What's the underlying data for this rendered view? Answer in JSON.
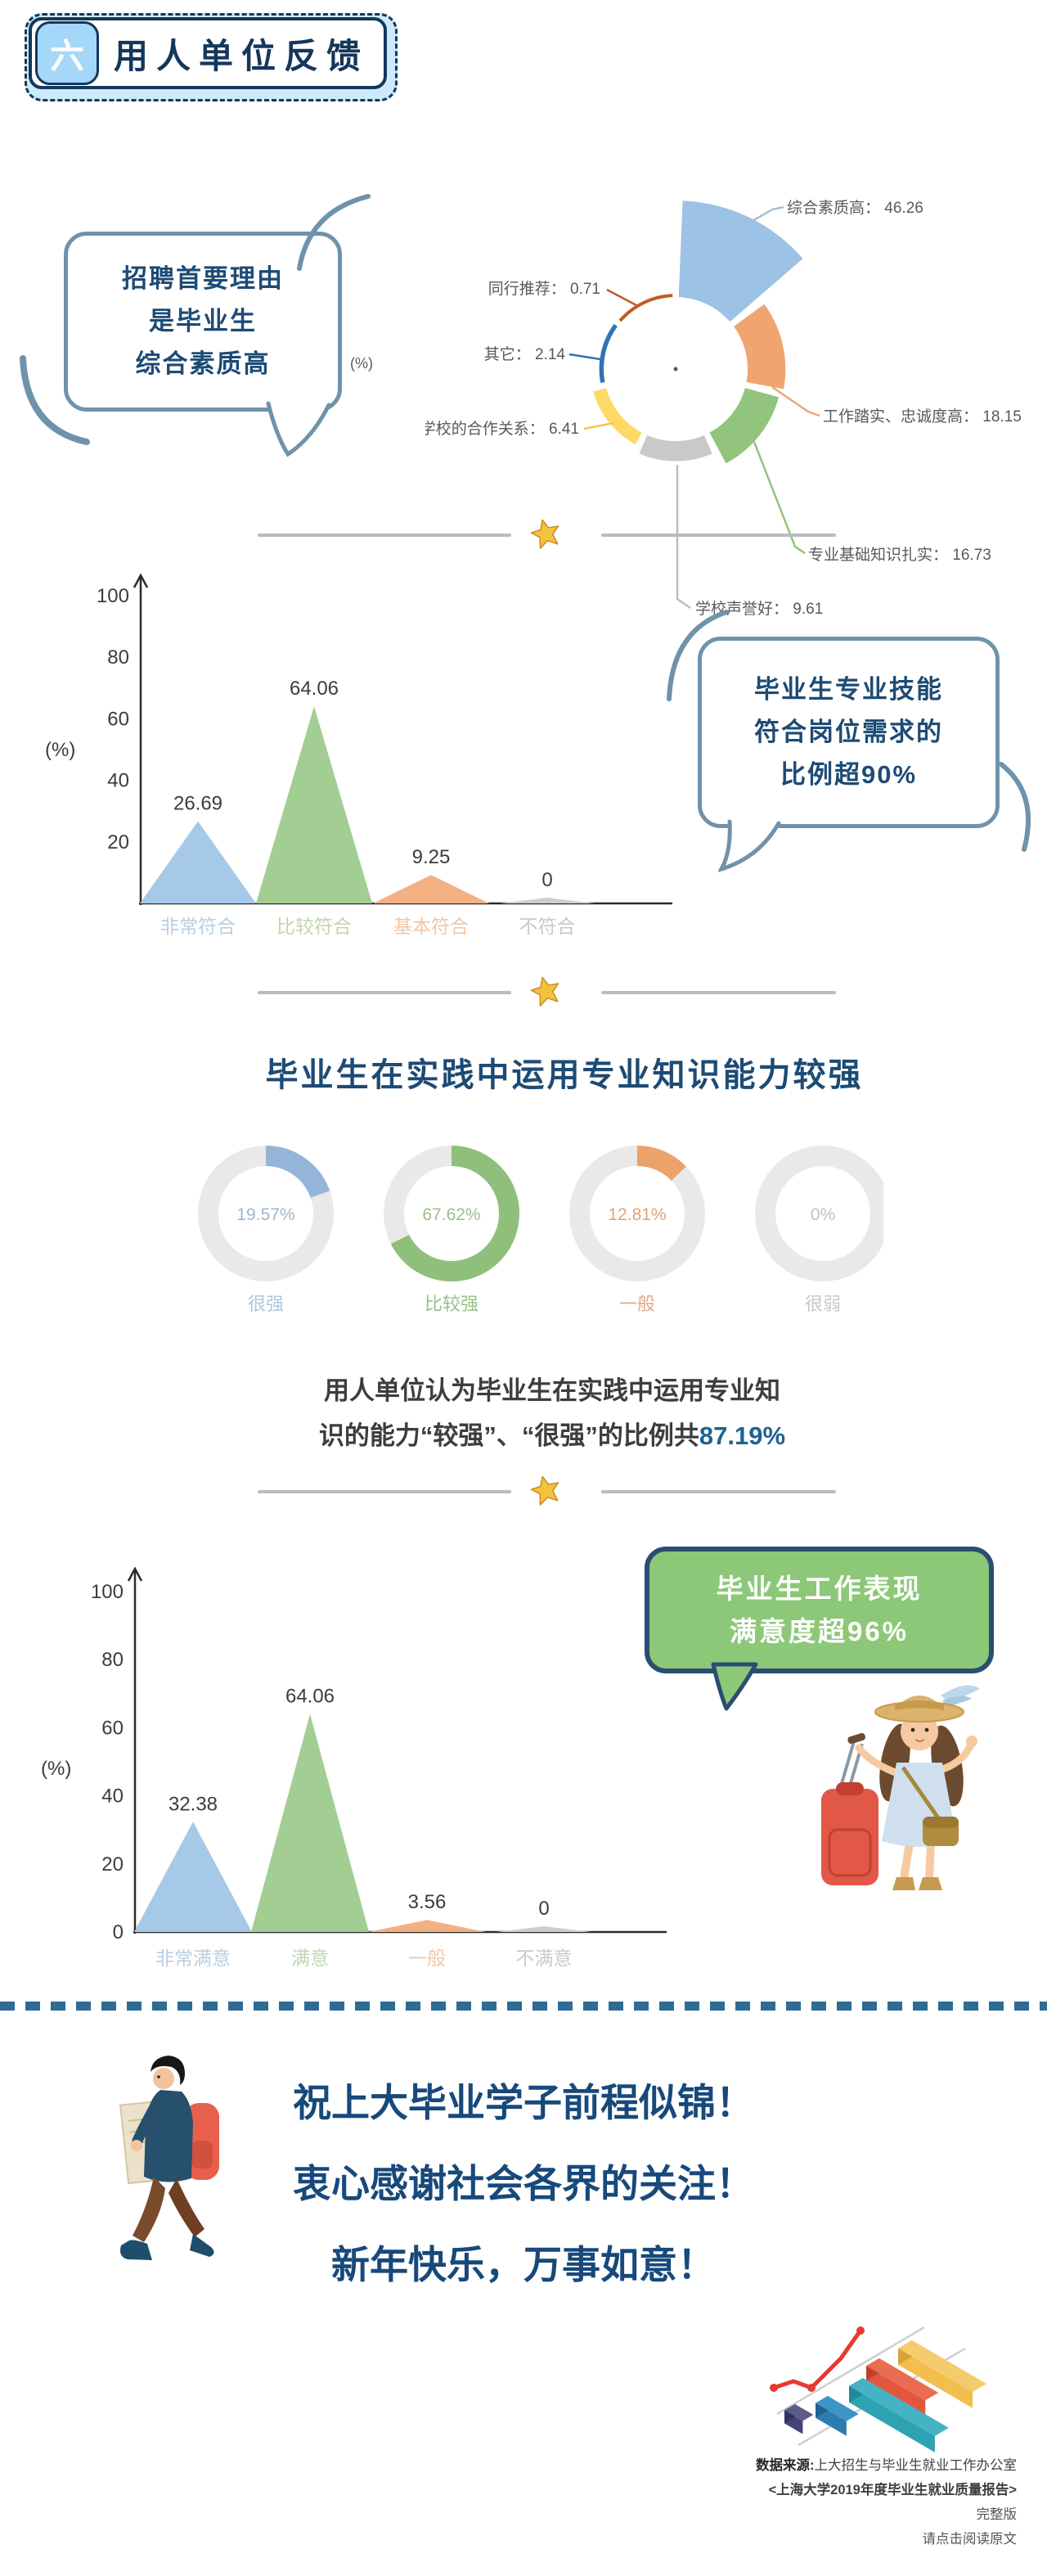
{
  "badge": {
    "icon_text": "六",
    "title": "用人单位反馈"
  },
  "bubbles": {
    "hiring": {
      "lines": [
        "招聘首要理由",
        "是毕业生",
        "综合素质高"
      ]
    },
    "skill": {
      "lines": [
        "毕业生专业技能",
        "符合岗位需求的",
        "比例超90%"
      ]
    },
    "satisfaction": {
      "lines": [
        "毕业生工作表现",
        "满意度超96%"
      ]
    }
  },
  "summary": {
    "line1": "用人单位认为毕业生在实践中运用专业知",
    "line2_text": "识的能力“较强”、“很强”的比例共",
    "line2_highlight": "87.19%"
  },
  "blessing": {
    "lines": [
      "祝上大毕业学子前程似锦！",
      "衷心感谢社会各界的关注！",
      "新年快乐，万事如意！"
    ]
  },
  "source": {
    "label": "数据来源:",
    "office": "上大招生与毕业生就业工作办公室",
    "report": "<上海大学2019年度毕业生就业质量报告>",
    "version": "完整版",
    "cta": "请点击阅读原文"
  },
  "chart_data": [
    {
      "id": "recruit_reasons",
      "type": "pie",
      "variant": "rose-equal-angle-donut",
      "unit": "(%)",
      "labels": [
        "综合素质高",
        "工作踏实、忠诚度高",
        "专业基础知识扎实",
        "学校声誉好",
        "与学校的合作关系",
        "其它",
        "同行推荐"
      ],
      "values": [
        46.26,
        18.15,
        16.73,
        9.61,
        6.41,
        2.14,
        0.71
      ],
      "value_labels": [
        "46.26",
        "18.15",
        "16.73",
        "9.61",
        "6.41",
        "2.14",
        "0.71"
      ],
      "colors": [
        "#9cc2e5",
        "#f0a571",
        "#92c47e",
        "#c9c9c9",
        "#ffd966",
        "#2e74b5",
        "#bf5b25"
      ],
      "legend_position": "outside-leader-lines"
    },
    {
      "id": "skill_fit",
      "type": "area",
      "variant": "triangle-peaks",
      "ylabel": "(%)",
      "ylim": [
        0,
        100
      ],
      "yticks": [
        20,
        40,
        60,
        80,
        100
      ],
      "categories": [
        "非常符合",
        "比较符合",
        "基本符合",
        "不符合"
      ],
      "values": [
        26.69,
        64.06,
        9.25,
        0
      ],
      "value_labels": [
        "26.69",
        "64.06",
        "9.25",
        "0"
      ],
      "colors": [
        "#a6c9e8",
        "#a3ce93",
        "#f3b183",
        "#cdcdcd"
      ],
      "category_colors": [
        "#b9cede",
        "#c2d6ae",
        "#f2c6a4",
        "#c9c9c9"
      ],
      "annotation": "毕业生专业技能符合岗位需求的比例超90%"
    },
    {
      "id": "knowledge_apply",
      "type": "pie",
      "variant": "donut-small-multiples",
      "title": "毕业生在实践中运用专业知识能力较强",
      "categories": [
        "很强",
        "比较强",
        "一般",
        "很弱"
      ],
      "values": [
        19.57,
        67.62,
        12.81,
        0
      ],
      "value_labels": [
        "19.57%",
        "67.62%",
        "12.81%",
        "0%"
      ],
      "colors": [
        "#94b5d8",
        "#8ec07c",
        "#eca26b",
        "#e9e9e9"
      ],
      "track_color": "#e9e9e9",
      "text_colors": [
        "#9fb6cd",
        "#9dc08b",
        "#e2a377",
        "#c0c0c0"
      ],
      "category_colors": [
        "#aec6d8",
        "#9abf8a",
        "#e2a986",
        "#c8c8c8"
      ]
    },
    {
      "id": "work_satisfaction",
      "type": "area",
      "variant": "triangle-peaks",
      "ylabel": "(%)",
      "ylim": [
        0,
        100
      ],
      "yticks": [
        0,
        20,
        40,
        60,
        80,
        100
      ],
      "categories": [
        "非常满意",
        "满意",
        "一般",
        "不满意"
      ],
      "values": [
        32.38,
        64.06,
        3.56,
        0
      ],
      "value_labels": [
        "32.38",
        "64.06",
        "3.56",
        "0"
      ],
      "colors": [
        "#a6c9e8",
        "#a3ce93",
        "#f3b183",
        "#cdcdcd"
      ],
      "category_colors": [
        "#b9cede",
        "#c2d6ae",
        "#f2c6a4",
        "#c9c9c9"
      ],
      "annotation": "毕业生工作表现满意度超96%"
    }
  ]
}
